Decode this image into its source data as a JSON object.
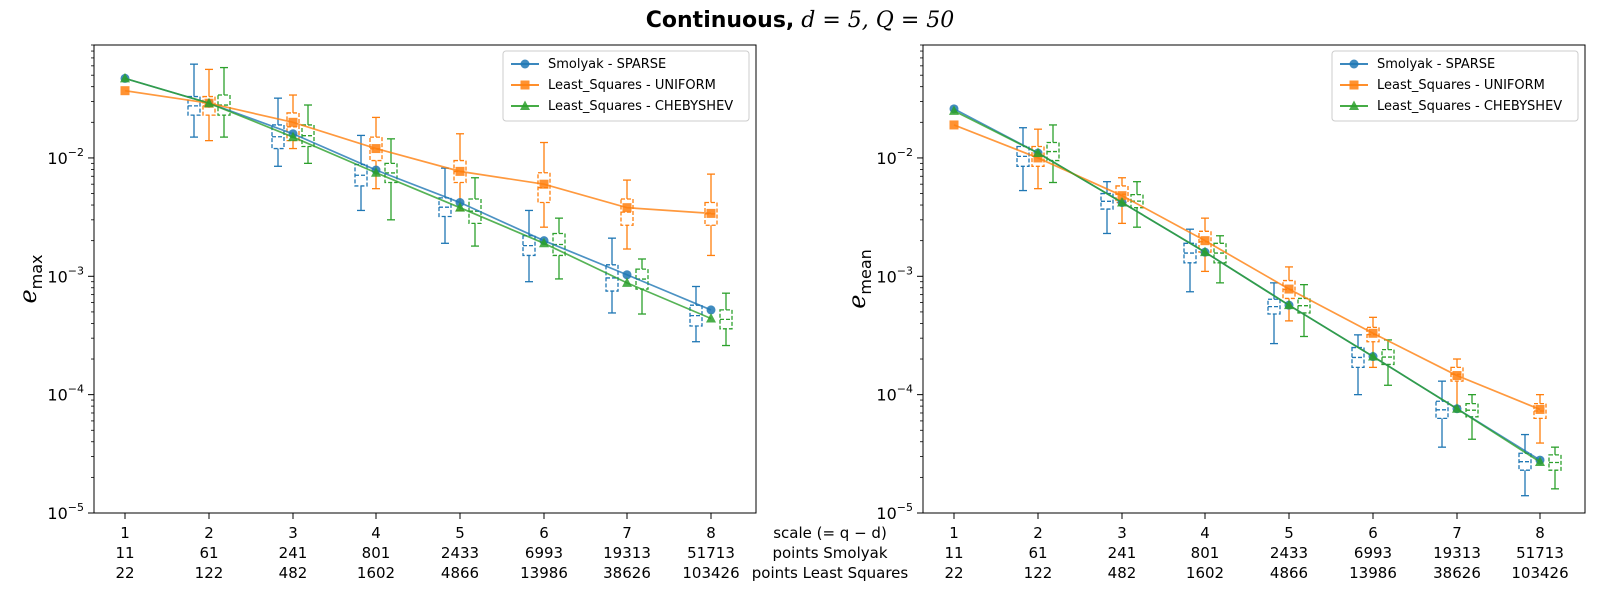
{
  "figure": {
    "title_bold": "Continuous,",
    "title_math": "d = 5, Q = 50"
  },
  "x_rows": {
    "scale_label": "scale (= q − d)",
    "smolyak_label": "points Smolyak",
    "ls_label": "points Least Squares"
  },
  "chart_data": [
    {
      "type": "line",
      "ylabel": "e_max",
      "yscale": "log",
      "ylim": [
        1e-05,
        0.09
      ],
      "x": [
        1,
        2,
        3,
        4,
        5,
        6,
        7,
        8
      ],
      "tick_labels": [
        "1",
        "2",
        "3",
        "4",
        "5",
        "6",
        "7",
        "8"
      ],
      "points_smolyak": [
        "11",
        "61",
        "241",
        "801",
        "2433",
        "6993",
        "19313",
        "51713"
      ],
      "points_least_squares": [
        "22",
        "122",
        "482",
        "1602",
        "4866",
        "13986",
        "38626",
        "103426"
      ],
      "yticks": [
        "10^{-5}",
        "10^{-4}",
        "10^{-3}",
        "10^{-2}"
      ],
      "legend_position": "top-right",
      "grid": false,
      "series": [
        {
          "name": "Smolyak - SPARSE",
          "color": "#1f77b4",
          "marker": "circle",
          "values": [
            0.047,
            0.029,
            0.016,
            0.0079,
            0.0042,
            0.002,
            0.00103,
            0.00052
          ],
          "box": [
            [
              0.023,
              0.033
            ],
            [
              0.012,
              0.019
            ],
            [
              0.0058,
              0.0088
            ],
            [
              0.0032,
              0.0046
            ],
            [
              0.0015,
              0.0022
            ],
            [
              0.00075,
              0.00125
            ],
            [
              0.00038,
              0.00057
            ]
          ],
          "whisk": [
            [
              0.015,
              0.062
            ],
            [
              0.0085,
              0.032
            ],
            [
              0.0036,
              0.0155
            ],
            [
              0.0019,
              0.0082
            ],
            [
              0.0009,
              0.0036
            ],
            [
              0.00049,
              0.0021
            ],
            [
              0.00028,
              0.00082
            ]
          ]
        },
        {
          "name": "Least_Squares - UNIFORM",
          "color": "#ff7f0e",
          "marker": "square",
          "values": [
            0.037,
            0.029,
            0.02,
            0.012,
            0.0077,
            0.006,
            0.0038,
            0.0034
          ],
          "box": [
            [
              0.023,
              0.033
            ],
            [
              0.014,
              0.024
            ],
            [
              0.0095,
              0.015
            ],
            [
              0.0062,
              0.0095
            ],
            [
              0.0042,
              0.0075
            ],
            [
              0.0027,
              0.0045
            ],
            [
              0.0027,
              0.0042
            ]
          ],
          "whisk": [
            [
              0.014,
              0.056
            ],
            [
              0.012,
              0.034
            ],
            [
              0.0055,
              0.022
            ],
            [
              0.0036,
              0.016
            ],
            [
              0.0026,
              0.0135
            ],
            [
              0.0017,
              0.0065
            ],
            [
              0.0015,
              0.0073
            ]
          ]
        },
        {
          "name": "Least_Squares - CHEBYSHEV",
          "color": "#2ca02c",
          "marker": "triangle",
          "values": [
            0.047,
            0.029,
            0.015,
            0.0075,
            0.0038,
            0.0019,
            0.00088,
            0.00044
          ],
          "box": [
            [
              0.023,
              0.034
            ],
            [
              0.0125,
              0.019
            ],
            [
              0.0062,
              0.009
            ],
            [
              0.0028,
              0.0045
            ],
            [
              0.0015,
              0.0023
            ],
            [
              0.00078,
              0.00115
            ],
            [
              0.00036,
              0.00052
            ]
          ],
          "whisk": [
            [
              0.015,
              0.058
            ],
            [
              0.009,
              0.028
            ],
            [
              0.003,
              0.0145
            ],
            [
              0.0018,
              0.0068
            ],
            [
              0.00095,
              0.0031
            ],
            [
              0.00048,
              0.0014
            ],
            [
              0.00026,
              0.00072
            ]
          ]
        }
      ]
    },
    {
      "type": "line",
      "ylabel": "e_mean",
      "yscale": "log",
      "ylim": [
        1e-05,
        0.09
      ],
      "x": [
        1,
        2,
        3,
        4,
        5,
        6,
        7,
        8
      ],
      "tick_labels": [
        "1",
        "2",
        "3",
        "4",
        "5",
        "6",
        "7",
        "8"
      ],
      "points_smolyak": [
        "11",
        "61",
        "241",
        "801",
        "2433",
        "6993",
        "19313",
        "51713"
      ],
      "points_least_squares": [
        "22",
        "122",
        "482",
        "1602",
        "4866",
        "13986",
        "38626",
        "103426"
      ],
      "yticks": [
        "10^{-5}",
        "10^{-4}",
        "10^{-3}",
        "10^{-2}"
      ],
      "legend_position": "top-right",
      "grid": false,
      "series": [
        {
          "name": "Smolyak - SPARSE",
          "color": "#1f77b4",
          "marker": "circle",
          "values": [
            0.026,
            0.011,
            0.0042,
            0.0016,
            0.00057,
            0.00021,
            7.6e-05,
            2.8e-05
          ],
          "box": [
            [
              0.0085,
              0.0125
            ],
            [
              0.0037,
              0.005
            ],
            [
              0.0013,
              0.0019
            ],
            [
              0.00048,
              0.00064
            ],
            [
              0.00017,
              0.00025
            ],
            [
              6.3e-05,
              8.8e-05
            ],
            [
              2.3e-05,
              3.2e-05
            ]
          ],
          "whisk": [
            [
              0.0053,
              0.018
            ],
            [
              0.0023,
              0.0063
            ],
            [
              0.00074,
              0.0025
            ],
            [
              0.00027,
              0.00088
            ],
            [
              0.0001,
              0.00032
            ],
            [
              3.6e-05,
              0.00013
            ],
            [
              1.4e-05,
              4.6e-05
            ]
          ]
        },
        {
          "name": "Least_Squares - UNIFORM",
          "color": "#ff7f0e",
          "marker": "square",
          "values": [
            0.019,
            0.01,
            0.0048,
            0.002,
            0.00078,
            0.00033,
            0.000145,
            7.5e-05
          ],
          "box": [
            [
              0.0085,
              0.0125
            ],
            [
              0.0042,
              0.0058
            ],
            [
              0.0016,
              0.0024
            ],
            [
              0.00065,
              0.00092
            ],
            [
              0.00028,
              0.00037
            ],
            [
              0.00013,
              0.00017
            ],
            [
              6.3e-05,
              8.4e-05
            ]
          ],
          "whisk": [
            [
              0.0055,
              0.0175
            ],
            [
              0.0028,
              0.0068
            ],
            [
              0.0011,
              0.0031
            ],
            [
              0.00042,
              0.0012
            ],
            [
              0.00017,
              0.00045
            ],
            [
              8e-05,
              0.0002
            ],
            [
              3.9e-05,
              0.0001
            ]
          ]
        },
        {
          "name": "Least_Squares - CHEBYSHEV",
          "color": "#2ca02c",
          "marker": "triangle",
          "values": [
            0.025,
            0.011,
            0.0042,
            0.0016,
            0.00057,
            0.00021,
            7.6e-05,
            2.7e-05
          ],
          "box": [
            [
              0.0095,
              0.0135
            ],
            [
              0.0038,
              0.0049
            ],
            [
              0.0013,
              0.0019
            ],
            [
              0.00049,
              0.00065
            ],
            [
              0.00018,
              0.00024
            ],
            [
              6.5e-05,
              8.4e-05
            ],
            [
              2.3e-05,
              3.1e-05
            ]
          ],
          "whisk": [
            [
              0.0062,
              0.019
            ],
            [
              0.0026,
              0.0063
            ],
            [
              0.00088,
              0.0022
            ],
            [
              0.00031,
              0.00085
            ],
            [
              0.00012,
              0.00029
            ],
            [
              4.2e-05,
              0.0001
            ],
            [
              1.6e-05,
              3.6e-05
            ]
          ]
        }
      ]
    }
  ]
}
